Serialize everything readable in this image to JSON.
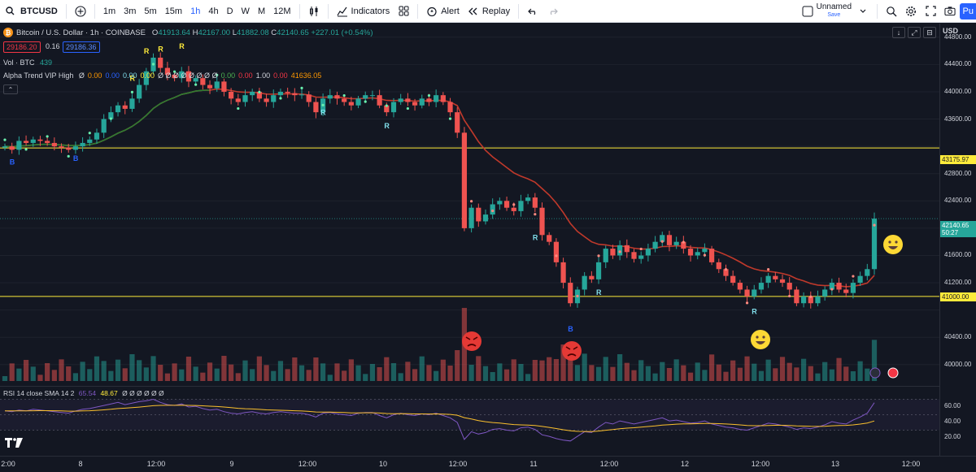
{
  "toolbar": {
    "symbol": "BTCUSD",
    "timeframes": [
      {
        "label": "1m",
        "active": false
      },
      {
        "label": "3m",
        "active": false
      },
      {
        "label": "5m",
        "active": false
      },
      {
        "label": "15m",
        "active": false
      },
      {
        "label": "1h",
        "active": true
      },
      {
        "label": "4h",
        "active": false
      },
      {
        "label": "D",
        "active": false
      },
      {
        "label": "W",
        "active": false
      },
      {
        "label": "M",
        "active": false
      },
      {
        "label": "12M",
        "active": false
      }
    ],
    "indicators_label": "Indicators",
    "alert_label": "Alert",
    "replay_label": "Replay",
    "layout_name": "Unnamed",
    "save_label": "Save",
    "publish_label": "Pu"
  },
  "legend": {
    "title": "Bitcoin / U.S. Dollar · 1h · COINBASE",
    "o_key": "O",
    "o_val": "41913.64",
    "h_key": "H",
    "h_val": "42167.00",
    "l_key": "L",
    "l_val": "41882.08",
    "c_key": "C",
    "c_val": "42140.65",
    "change": "+227.01 (+0.54%)",
    "bid": "29186.20",
    "spread": "0.16",
    "ask": "29186.36",
    "vol_label": "Vol · BTC",
    "vol_value": "439",
    "alpha_label": "Alpha Trend VIP High",
    "alpha_values": [
      {
        "text": "Ø",
        "color": "#d1d4dc"
      },
      {
        "text": "0.00",
        "color": "#ff9800"
      },
      {
        "text": "0.00",
        "color": "#2962ff"
      },
      {
        "text": "0.00",
        "color": "#80deea"
      },
      {
        "text": "0.00",
        "color": "#ffeb3b"
      },
      {
        "text": "Ø Ø Ø Ø Ø Ø Ø Ø",
        "color": "#d1d4dc"
      },
      {
        "text": "0.00",
        "color": "#4caf50"
      },
      {
        "text": "0.00",
        "color": "#f23645"
      },
      {
        "text": "1.00",
        "color": "#d1d4dc"
      },
      {
        "text": "0.00",
        "color": "#f23645"
      },
      {
        "text": "41636.05",
        "color": "#ff9800"
      }
    ]
  },
  "price_axis": {
    "currency": "USD",
    "ticks": [
      "44800.00",
      "44400.00",
      "44000.00",
      "43600.00",
      "42800.00",
      "42400.00",
      "41600.00",
      "41200.00",
      "40400.00",
      "40000.00"
    ],
    "tag_upper": "43175.97",
    "tag_last": "42140.65",
    "tag_countdown": "50:27",
    "tag_lower": "41000.00"
  },
  "rsi": {
    "label": "RSI 14 close SMA 14 2",
    "value1": "65.54",
    "value2": "48.67",
    "extra": "Ø Ø Ø Ø Ø Ø",
    "ticks": [
      "60.00",
      "40.00",
      "20.00"
    ]
  },
  "time_axis": {
    "ticks": [
      "2:00",
      "8",
      "12:00",
      "9",
      "12:00",
      "10",
      "12:00",
      "11",
      "12:00",
      "12",
      "12:00",
      "13",
      "12:00"
    ]
  },
  "signals": {
    "buy": "B",
    "rally": "R"
  },
  "colors": {
    "up": "#26a69a",
    "down": "#ef5350",
    "yellow_line": "#ffeb3b",
    "trend_green": "#2e7d32",
    "trend_red": "#c62828",
    "trend_orange": "#ff9800"
  },
  "chart_data": {
    "type": "candlestick",
    "symbol": "BTCUSD",
    "interval": "1h",
    "ylim": [
      39700,
      45000
    ],
    "horizontal_levels": [
      43175.97,
      41000.0
    ],
    "last_price": 42140.65,
    "closes": [
      43200,
      43150,
      43280,
      43250,
      43300,
      43280,
      43250,
      43200,
      43180,
      43150,
      43200,
      43250,
      43300,
      43400,
      43600,
      43700,
      43800,
      43750,
      43900,
      44100,
      44300,
      44500,
      44350,
      44250,
      44200,
      44300,
      44150,
      44200,
      44100,
      44050,
      44150,
      44000,
      43900,
      43850,
      43950,
      44000,
      43900,
      43850,
      43950,
      44000,
      43980,
      43950,
      43960,
      43850,
      43700,
      43900,
      43950,
      43900,
      43850,
      43800,
      43900,
      43950,
      43950,
      43800,
      43700,
      43850,
      43900,
      43850,
      43800,
      43900,
      43850,
      43950,
      43850,
      43700,
      43400,
      42000,
      42300,
      42100,
      42200,
      42350,
      42400,
      42300,
      42250,
      42400,
      42450,
      42300,
      41900,
      41800,
      41500,
      41200,
      40900,
      41100,
      41300,
      41250,
      41500,
      41700,
      41600,
      41750,
      41650,
      41550,
      41600,
      41700,
      41800,
      41900,
      41750,
      41800,
      41700,
      41600,
      41650,
      41700,
      41500,
      41400,
      41300,
      41200,
      41100,
      41000,
      41100,
      41200,
      41300,
      41250,
      41200,
      41100,
      40900,
      41000,
      40900,
      41000,
      41100,
      41200,
      41100,
      41050,
      41200,
      41300,
      41400,
      42140
    ],
    "rsi": [
      55,
      54,
      56,
      55,
      57,
      56,
      55,
      54,
      53,
      52,
      55,
      57,
      58,
      60,
      62,
      64,
      66,
      63,
      65,
      67,
      68,
      70,
      66,
      63,
      62,
      64,
      60,
      61,
      58,
      56,
      57,
      54,
      52,
      51,
      53,
      54,
      52,
      51,
      53,
      54,
      53,
      52,
      52,
      50,
      47,
      52,
      53,
      51,
      50,
      49,
      52,
      53,
      53,
      49,
      46,
      50,
      52,
      50,
      49,
      51,
      50,
      52,
      49,
      46,
      40,
      18,
      28,
      25,
      27,
      31,
      32,
      30,
      29,
      33,
      34,
      31,
      24,
      22,
      19,
      17,
      16,
      22,
      28,
      27,
      34,
      40,
      38,
      42,
      40,
      38,
      40,
      42,
      44,
      46,
      42,
      43,
      41,
      39,
      40,
      42,
      38,
      36,
      34,
      33,
      31,
      30,
      33,
      36,
      39,
      38,
      36,
      34,
      31,
      33,
      32,
      34,
      37,
      41,
      39,
      38,
      43,
      47,
      52,
      65.54
    ]
  }
}
